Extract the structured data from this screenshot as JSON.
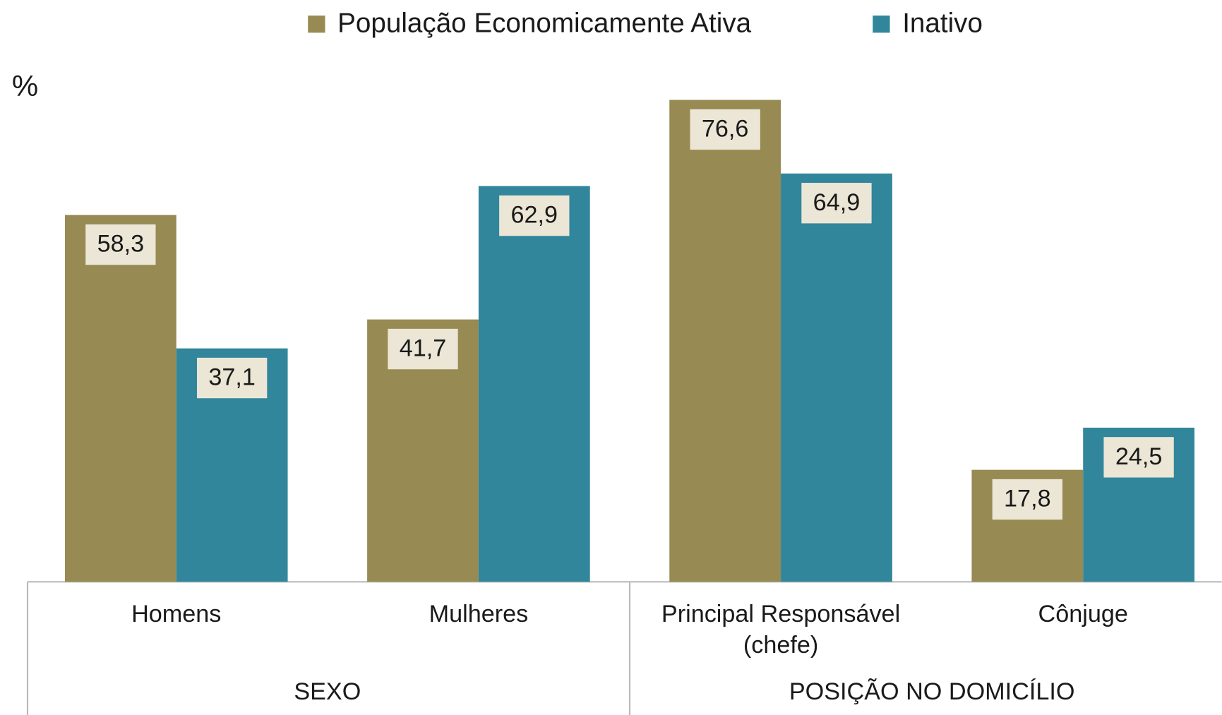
{
  "chart_data": {
    "type": "bar",
    "y_label": "%",
    "categories": [
      "Homens",
      "Mulheres",
      "Principal Responsável\n(chefe)",
      "Cônjuge"
    ],
    "group_labels": [
      "SEXO",
      "POSIÇÃO NO DOMICÍLIO"
    ],
    "series": [
      {
        "name": "População Economicamente Ativa",
        "color": "#978a52",
        "values": [
          58.3,
          41.7,
          76.6,
          17.8
        ],
        "value_labels": [
          "58,3",
          "41,7",
          "76,6",
          "17,8"
        ]
      },
      {
        "name": "Inativo",
        "color": "#31869b",
        "values": [
          37.1,
          62.9,
          64.9,
          24.5
        ],
        "value_labels": [
          "37,1",
          "62,9",
          "64,9",
          "24,5"
        ]
      }
    ],
    "ylim": [
      0,
      90
    ]
  }
}
